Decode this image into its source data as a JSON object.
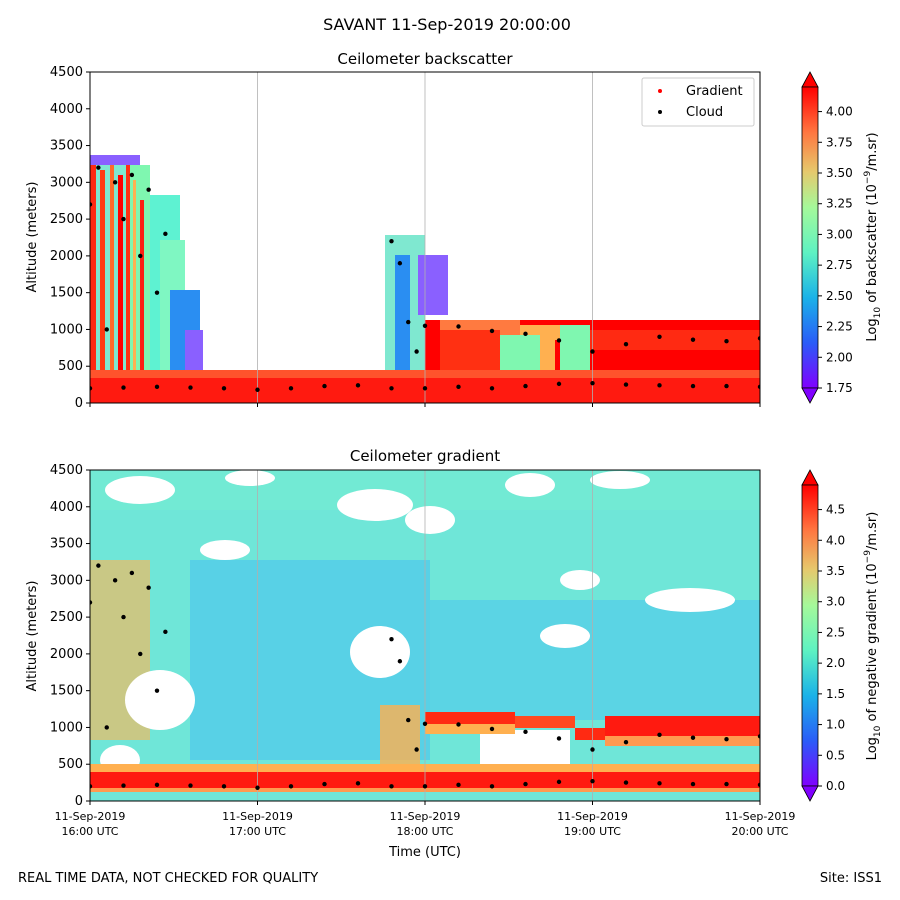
{
  "figure": {
    "suptitle": "SAVANT 11-Sep-2019 20:00:00",
    "footer_left": "REAL TIME DATA, NOT CHECKED FOR QUALITY",
    "footer_right": "Site: ISS1",
    "xlabel": "Time (UTC)",
    "x_ticks": [
      {
        "date": "11-Sep-2019",
        "time": "16:00 UTC"
      },
      {
        "date": "11-Sep-2019",
        "time": "17:00 UTC"
      },
      {
        "date": "11-Sep-2019",
        "time": "18:00 UTC"
      },
      {
        "date": "11-Sep-2019",
        "time": "19:00 UTC"
      },
      {
        "date": "11-Sep-2019",
        "time": "20:00 UTC"
      }
    ]
  },
  "chart_data": [
    {
      "type": "heatmap",
      "title": "Ceilometer backscatter",
      "ylabel": "Altitude (meters)",
      "xlim": [
        "16:00",
        "20:00"
      ],
      "ylim": [
        0,
        4500
      ],
      "y_ticks": [
        0,
        500,
        1000,
        1500,
        2000,
        2500,
        3000,
        3500,
        4000,
        4500
      ],
      "grid": "vertical at hourly ticks",
      "colorbar": {
        "label": "Log10 of backscatter (10^-9/m.sr)",
        "ticks": [
          "1.75",
          "2.00",
          "2.25",
          "2.50",
          "2.75",
          "3.00",
          "3.25",
          "3.50",
          "3.75",
          "4.00"
        ],
        "range": [
          1.75,
          4.2
        ],
        "colormap": "rainbow"
      },
      "legend": {
        "placement": "top-right",
        "entries": [
          {
            "label": "Gradient",
            "color": "#ff0000"
          },
          {
            "label": "Cloud",
            "color": "#000000"
          }
        ]
      },
      "cloud_series": [
        {
          "name": "low",
          "points": [
            [
              16.0,
              200
            ],
            [
              16.2,
              210
            ],
            [
              16.4,
              220
            ],
            [
              16.6,
              210
            ],
            [
              16.8,
              200
            ],
            [
              17.0,
              180
            ],
            [
              17.2,
              200
            ],
            [
              17.4,
              230
            ],
            [
              17.6,
              240
            ],
            [
              17.8,
              200
            ],
            [
              18.0,
              200
            ],
            [
              18.2,
              220
            ],
            [
              18.4,
              200
            ],
            [
              18.6,
              230
            ],
            [
              18.8,
              260
            ],
            [
              19.0,
              270
            ],
            [
              19.2,
              250
            ],
            [
              19.4,
              240
            ],
            [
              19.6,
              230
            ],
            [
              19.8,
              230
            ],
            [
              20.0,
              220
            ]
          ]
        },
        {
          "name": "upper",
          "points": [
            [
              18.0,
              1050
            ],
            [
              18.2,
              1040
            ],
            [
              18.4,
              980
            ],
            [
              18.6,
              940
            ],
            [
              18.8,
              850
            ],
            [
              19.0,
              700
            ],
            [
              19.2,
              800
            ],
            [
              19.4,
              900
            ],
            [
              19.6,
              860
            ],
            [
              19.8,
              840
            ],
            [
              20.0,
              880
            ]
          ]
        },
        {
          "name": "early",
          "points": [
            [
              16.0,
              2700
            ],
            [
              16.05,
              3200
            ],
            [
              16.1,
              1000
            ],
            [
              16.15,
              3000
            ],
            [
              16.2,
              2500
            ],
            [
              16.25,
              3100
            ],
            [
              16.3,
              2000
            ],
            [
              16.35,
              2900
            ],
            [
              16.4,
              1500
            ],
            [
              16.45,
              2300
            ],
            [
              17.8,
              2200
            ],
            [
              17.85,
              1900
            ],
            [
              17.9,
              1100
            ],
            [
              17.95,
              700
            ]
          ]
        }
      ]
    },
    {
      "type": "heatmap",
      "title": "Ceilometer gradient",
      "ylabel": "Altitude (meters)",
      "xlim": [
        "16:00",
        "20:00"
      ],
      "ylim": [
        0,
        4500
      ],
      "y_ticks": [
        0,
        500,
        1000,
        1500,
        2000,
        2500,
        3000,
        3500,
        4000,
        4500
      ],
      "grid": "vertical at hourly ticks",
      "colorbar": {
        "label": "Log10 of negative gradient (10^-9/m.sr)",
        "ticks": [
          "0.0",
          "0.5",
          "1.0",
          "1.5",
          "2.0",
          "2.5",
          "3.0",
          "3.5",
          "4.0",
          "4.5"
        ],
        "range": [
          0,
          4.9
        ],
        "colormap": "rainbow"
      },
      "cloud_series": [
        {
          "name": "low",
          "points": [
            [
              16.0,
              200
            ],
            [
              16.2,
              210
            ],
            [
              16.4,
              220
            ],
            [
              16.6,
              210
            ],
            [
              16.8,
              200
            ],
            [
              17.0,
              180
            ],
            [
              17.2,
              200
            ],
            [
              17.4,
              230
            ],
            [
              17.6,
              240
            ],
            [
              17.8,
              200
            ],
            [
              18.0,
              200
            ],
            [
              18.2,
              220
            ],
            [
              18.4,
              200
            ],
            [
              18.6,
              230
            ],
            [
              18.8,
              260
            ],
            [
              19.0,
              270
            ],
            [
              19.2,
              250
            ],
            [
              19.4,
              240
            ],
            [
              19.6,
              230
            ],
            [
              19.8,
              230
            ],
            [
              20.0,
              220
            ]
          ]
        },
        {
          "name": "upper",
          "points": [
            [
              18.0,
              1050
            ],
            [
              18.2,
              1040
            ],
            [
              18.4,
              980
            ],
            [
              18.6,
              940
            ],
            [
              18.8,
              850
            ],
            [
              19.0,
              700
            ],
            [
              19.2,
              800
            ],
            [
              19.4,
              900
            ],
            [
              19.6,
              860
            ],
            [
              19.8,
              840
            ],
            [
              20.0,
              880
            ]
          ]
        },
        {
          "name": "early",
          "points": [
            [
              16.0,
              2700
            ],
            [
              16.05,
              3200
            ],
            [
              16.1,
              1000
            ],
            [
              16.15,
              3000
            ],
            [
              16.2,
              2500
            ],
            [
              16.25,
              3100
            ],
            [
              16.3,
              2000
            ],
            [
              16.35,
              2900
            ],
            [
              16.4,
              1500
            ],
            [
              16.45,
              2300
            ],
            [
              17.8,
              2200
            ],
            [
              17.85,
              1900
            ],
            [
              17.9,
              1100
            ],
            [
              17.95,
              700
            ]
          ]
        }
      ]
    }
  ]
}
